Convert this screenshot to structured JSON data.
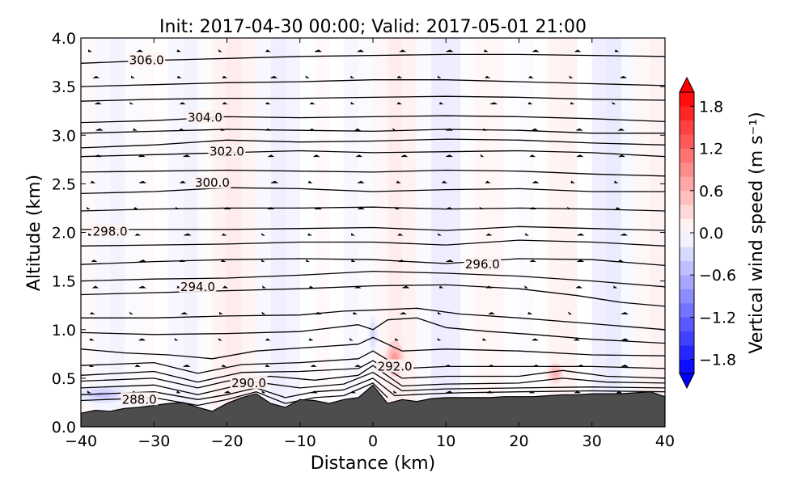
{
  "chart_data": {
    "type": "contour",
    "title": "Init: 2017-04-30 00:00; Valid: 2017-05-01 21:00",
    "xlabel": "Distance (km)",
    "ylabel": "Altitude (km)",
    "xlim": [
      -40,
      40
    ],
    "ylim": [
      0.0,
      4.0
    ],
    "x_ticks": [
      "−40",
      "−30",
      "−20",
      "−10",
      "0",
      "10",
      "20",
      "30",
      "40"
    ],
    "y_ticks": [
      "0.0",
      "0.5",
      "1.0",
      "1.5",
      "2.0",
      "2.5",
      "3.0",
      "3.5",
      "4.0"
    ],
    "colorbar": {
      "label": "Vertical wind speed (m s⁻¹)",
      "range": [
        -2.0,
        2.0
      ],
      "ticks": [
        "−1.8",
        "−1.2",
        "−0.6",
        "0.0",
        "0.6",
        "1.2",
        "1.8"
      ],
      "colormap": "bwr",
      "low_color": "#0000ff",
      "mid_color": "#ffffff",
      "high_color": "#ff0000"
    },
    "terrain_color": "#4d4d4d",
    "terrain": {
      "x": [
        -40,
        -38,
        -36,
        -34,
        -32,
        -30,
        -28,
        -26,
        -24,
        -22,
        -20,
        -18,
        -16,
        -14,
        -12,
        -10,
        -8,
        -6,
        -4,
        -2,
        0,
        2,
        4,
        6,
        8,
        10,
        12,
        14,
        16,
        18,
        20,
        22,
        24,
        26,
        28,
        30,
        32,
        34,
        36,
        38,
        40
      ],
      "height": [
        0.14,
        0.17,
        0.16,
        0.19,
        0.2,
        0.22,
        0.24,
        0.25,
        0.2,
        0.16,
        0.24,
        0.3,
        0.34,
        0.24,
        0.2,
        0.28,
        0.27,
        0.24,
        0.28,
        0.3,
        0.43,
        0.24,
        0.28,
        0.26,
        0.29,
        0.3,
        0.3,
        0.3,
        0.3,
        0.31,
        0.31,
        0.31,
        0.32,
        0.33,
        0.33,
        0.34,
        0.34,
        0.34,
        0.35,
        0.36,
        0.31
      ]
    },
    "theta_contours": [
      {
        "level": "288.0",
        "points": [
          [
            -40,
            0.27
          ],
          [
            -30,
            0.3
          ],
          [
            -24,
            0.22
          ],
          [
            -20,
            0.28
          ],
          [
            -16,
            0.36
          ],
          [
            -12,
            0.24
          ],
          [
            -8,
            0.3
          ],
          [
            -4,
            0.32
          ],
          [
            0,
            0.45
          ],
          [
            2,
            0.3
          ]
        ]
      },
      {
        "level": "",
        "points": [
          [
            -40,
            0.33
          ],
          [
            -30,
            0.36
          ],
          [
            -24,
            0.28
          ],
          [
            -20,
            0.33
          ],
          [
            -16,
            0.4
          ],
          [
            -12,
            0.3
          ],
          [
            -8,
            0.36
          ],
          [
            -4,
            0.38
          ],
          [
            0,
            0.5
          ],
          [
            3,
            0.32
          ],
          [
            8,
            0.34
          ],
          [
            12,
            0.35
          ],
          [
            20,
            0.36
          ],
          [
            30,
            0.37
          ],
          [
            40,
            0.36
          ]
        ]
      },
      {
        "level": "290.0",
        "points": [
          [
            -40,
            0.4
          ],
          [
            -30,
            0.43
          ],
          [
            -24,
            0.33
          ],
          [
            -20,
            0.4
          ],
          [
            -16,
            0.46
          ],
          [
            -10,
            0.4
          ],
          [
            -4,
            0.44
          ],
          [
            0,
            0.56
          ],
          [
            4,
            0.37
          ],
          [
            10,
            0.39
          ],
          [
            20,
            0.4
          ],
          [
            30,
            0.41
          ],
          [
            40,
            0.4
          ]
        ]
      },
      {
        "level": "",
        "points": [
          [
            -40,
            0.47
          ],
          [
            -30,
            0.5
          ],
          [
            -24,
            0.4
          ],
          [
            -20,
            0.47
          ],
          [
            -14,
            0.52
          ],
          [
            -8,
            0.48
          ],
          [
            -2,
            0.53
          ],
          [
            0,
            0.63
          ],
          [
            4,
            0.42
          ],
          [
            10,
            0.44
          ],
          [
            20,
            0.45
          ],
          [
            26,
            0.5
          ],
          [
            32,
            0.46
          ],
          [
            40,
            0.45
          ]
        ]
      },
      {
        "level": "292.0",
        "points": [
          [
            -40,
            0.53
          ],
          [
            -30,
            0.57
          ],
          [
            -24,
            0.46
          ],
          [
            -18,
            0.56
          ],
          [
            -10,
            0.57
          ],
          [
            -2,
            0.6
          ],
          [
            0,
            0.68
          ],
          [
            4,
            0.5
          ],
          [
            10,
            0.52
          ],
          [
            20,
            0.52
          ],
          [
            26,
            0.58
          ],
          [
            32,
            0.52
          ],
          [
            40,
            0.5
          ]
        ]
      },
      {
        "level": "",
        "points": [
          [
            -40,
            0.63
          ],
          [
            -30,
            0.66
          ],
          [
            -24,
            0.55
          ],
          [
            -18,
            0.64
          ],
          [
            -10,
            0.66
          ],
          [
            -2,
            0.7
          ],
          [
            0,
            0.78
          ],
          [
            4,
            0.6
          ],
          [
            10,
            0.62
          ],
          [
            20,
            0.62
          ],
          [
            30,
            0.62
          ],
          [
            40,
            0.6
          ]
        ]
      },
      {
        "level": "",
        "points": [
          [
            -40,
            0.8
          ],
          [
            -34,
            0.76
          ],
          [
            -28,
            0.74
          ],
          [
            -22,
            0.7
          ],
          [
            -16,
            0.78
          ],
          [
            -8,
            0.82
          ],
          [
            -2,
            0.85
          ],
          [
            0,
            0.92
          ],
          [
            4,
            0.78
          ],
          [
            10,
            0.8
          ],
          [
            20,
            0.78
          ],
          [
            30,
            0.74
          ],
          [
            40,
            0.73
          ]
        ]
      },
      {
        "level": "",
        "points": [
          [
            -40,
            0.97
          ],
          [
            -30,
            0.95
          ],
          [
            -20,
            0.96
          ],
          [
            -10,
            0.98
          ],
          [
            -2,
            1.05
          ],
          [
            0,
            1.0
          ],
          [
            2,
            1.1
          ],
          [
            6,
            1.12
          ],
          [
            10,
            1.02
          ],
          [
            16,
            0.98
          ],
          [
            22,
            0.95
          ],
          [
            30,
            0.9
          ],
          [
            40,
            0.86
          ]
        ]
      },
      {
        "level": "",
        "points": [
          [
            -40,
            1.12
          ],
          [
            -30,
            1.12
          ],
          [
            -20,
            1.14
          ],
          [
            -10,
            1.15
          ],
          [
            -4,
            1.19
          ],
          [
            0,
            1.2
          ],
          [
            6,
            1.22
          ],
          [
            12,
            1.16
          ],
          [
            20,
            1.12
          ],
          [
            30,
            1.06
          ],
          [
            40,
            1.0
          ]
        ]
      },
      {
        "level": "",
        "points": [
          [
            -40,
            1.36
          ],
          [
            -30,
            1.38
          ],
          [
            -20,
            1.4
          ],
          [
            -10,
            1.42
          ],
          [
            0,
            1.45
          ],
          [
            10,
            1.46
          ],
          [
            20,
            1.42
          ],
          [
            28,
            1.35
          ],
          [
            34,
            1.28
          ],
          [
            40,
            1.24
          ]
        ]
      },
      {
        "level": "294.0",
        "points": [
          [
            -40,
            1.5
          ],
          [
            -30,
            1.52
          ],
          [
            -20,
            1.53
          ],
          [
            -10,
            1.56
          ],
          [
            0,
            1.6
          ],
          [
            10,
            1.58
          ],
          [
            20,
            1.55
          ],
          [
            30,
            1.5
          ],
          [
            40,
            1.44
          ]
        ]
      },
      {
        "level": "296.0",
        "points": [
          [
            -40,
            1.67
          ],
          [
            -30,
            1.7
          ],
          [
            -20,
            1.72
          ],
          [
            -10,
            1.73
          ],
          [
            0,
            1.72
          ],
          [
            10,
            1.68
          ],
          [
            20,
            1.73
          ],
          [
            30,
            1.72
          ],
          [
            40,
            1.66
          ]
        ]
      },
      {
        "level": "",
        "points": [
          [
            -40,
            1.86
          ],
          [
            -30,
            1.87
          ],
          [
            -20,
            1.88
          ],
          [
            -10,
            1.9
          ],
          [
            0,
            1.9
          ],
          [
            10,
            1.87
          ],
          [
            20,
            1.92
          ],
          [
            30,
            1.9
          ],
          [
            40,
            1.86
          ]
        ]
      },
      {
        "level": "298.0",
        "points": [
          [
            -40,
            2.03
          ],
          [
            -30,
            2.03
          ],
          [
            -20,
            2.03
          ],
          [
            -10,
            2.04
          ],
          [
            0,
            2.05
          ],
          [
            10,
            2.02
          ],
          [
            20,
            2.06
          ],
          [
            30,
            2.04
          ],
          [
            40,
            2.02
          ]
        ]
      },
      {
        "level": "",
        "points": [
          [
            -40,
            2.22
          ],
          [
            -30,
            2.24
          ],
          [
            -20,
            2.25
          ],
          [
            -10,
            2.25
          ],
          [
            0,
            2.26
          ],
          [
            10,
            2.24
          ],
          [
            20,
            2.25
          ],
          [
            30,
            2.24
          ],
          [
            40,
            2.22
          ]
        ]
      },
      {
        "level": "300.0",
        "points": [
          [
            -40,
            2.4
          ],
          [
            -30,
            2.42
          ],
          [
            -20,
            2.46
          ],
          [
            -10,
            2.45
          ],
          [
            0,
            2.42
          ],
          [
            10,
            2.44
          ],
          [
            20,
            2.45
          ],
          [
            30,
            2.42
          ],
          [
            40,
            2.42
          ]
        ]
      },
      {
        "level": "",
        "points": [
          [
            -40,
            2.62
          ],
          [
            -30,
            2.63
          ],
          [
            -20,
            2.64
          ],
          [
            -10,
            2.63
          ],
          [
            0,
            2.62
          ],
          [
            10,
            2.64
          ],
          [
            20,
            2.63
          ],
          [
            30,
            2.6
          ],
          [
            40,
            2.58
          ]
        ]
      },
      {
        "level": "302.0",
        "points": [
          [
            -40,
            2.78
          ],
          [
            -30,
            2.8
          ],
          [
            -20,
            2.82
          ],
          [
            -10,
            2.84
          ],
          [
            0,
            2.82
          ],
          [
            10,
            2.83
          ],
          [
            20,
            2.84
          ],
          [
            30,
            2.82
          ],
          [
            40,
            2.78
          ]
        ]
      },
      {
        "level": "",
        "points": [
          [
            -40,
            2.87
          ],
          [
            -30,
            2.9
          ],
          [
            -20,
            2.95
          ],
          [
            -10,
            2.93
          ],
          [
            0,
            2.94
          ],
          [
            10,
            2.96
          ],
          [
            20,
            2.95
          ],
          [
            30,
            2.92
          ],
          [
            40,
            2.9
          ]
        ]
      },
      {
        "level": "",
        "points": [
          [
            -40,
            3.02
          ],
          [
            -30,
            3.04
          ],
          [
            -20,
            3.06
          ],
          [
            -10,
            3.05
          ],
          [
            0,
            3.04
          ],
          [
            10,
            3.06
          ],
          [
            20,
            3.05
          ],
          [
            30,
            3.02
          ],
          [
            40,
            3.02
          ]
        ]
      },
      {
        "level": "304.0",
        "points": [
          [
            -40,
            3.13
          ],
          [
            -30,
            3.15
          ],
          [
            -20,
            3.19
          ],
          [
            -10,
            3.18
          ],
          [
            0,
            3.19
          ],
          [
            10,
            3.2
          ],
          [
            20,
            3.19
          ],
          [
            30,
            3.17
          ],
          [
            40,
            3.14
          ]
        ]
      },
      {
        "level": "",
        "points": [
          [
            -40,
            3.35
          ],
          [
            -30,
            3.37
          ],
          [
            -20,
            3.38
          ],
          [
            -10,
            3.38
          ],
          [
            0,
            3.39
          ],
          [
            10,
            3.4
          ],
          [
            20,
            3.39
          ],
          [
            30,
            3.37
          ],
          [
            40,
            3.36
          ]
        ]
      },
      {
        "level": "",
        "points": [
          [
            -40,
            3.5
          ],
          [
            -30,
            3.52
          ],
          [
            -20,
            3.54
          ],
          [
            -10,
            3.55
          ],
          [
            0,
            3.57
          ],
          [
            10,
            3.57
          ],
          [
            20,
            3.55
          ],
          [
            30,
            3.53
          ],
          [
            40,
            3.51
          ]
        ]
      },
      {
        "level": "306.0",
        "points": [
          [
            -40,
            3.74
          ],
          [
            -30,
            3.77
          ],
          [
            -20,
            3.79
          ],
          [
            -10,
            3.81
          ],
          [
            0,
            3.82
          ],
          [
            10,
            3.83
          ],
          [
            20,
            3.83
          ],
          [
            30,
            3.82
          ],
          [
            40,
            3.81
          ]
        ]
      }
    ],
    "contour_labels": [
      {
        "text": "306.0",
        "x": -31,
        "y": 3.77
      },
      {
        "text": "304.0",
        "x": -23,
        "y": 3.18
      },
      {
        "text": "302.0",
        "x": -20,
        "y": 2.83
      },
      {
        "text": "300.0",
        "x": -22,
        "y": 2.51
      },
      {
        "text": "298.0",
        "x": -36,
        "y": 2.01
      },
      {
        "text": "296.0",
        "x": 15,
        "y": 1.67
      },
      {
        "text": "294.0",
        "x": -24,
        "y": 1.44
      },
      {
        "text": "292.0",
        "x": 3,
        "y": 0.62
      },
      {
        "text": "290.0",
        "x": -17,
        "y": 0.45
      },
      {
        "text": "288.0",
        "x": -32,
        "y": 0.28
      }
    ],
    "vertical_velocity_features": [
      {
        "x": 3,
        "y": 0.7,
        "w": 0.9,
        "sx": 1.6,
        "sy": 0.25
      },
      {
        "x": 25,
        "y": 0.55,
        "w": 0.7,
        "sx": 1.4,
        "sy": 0.14
      },
      {
        "x": -37,
        "y": 0.33,
        "w": -0.5,
        "sx": 4.0,
        "sy": 0.12
      },
      {
        "x": 0,
        "y": 0.95,
        "w": -0.35,
        "sx": 0.8,
        "sy": 0.25
      }
    ]
  }
}
